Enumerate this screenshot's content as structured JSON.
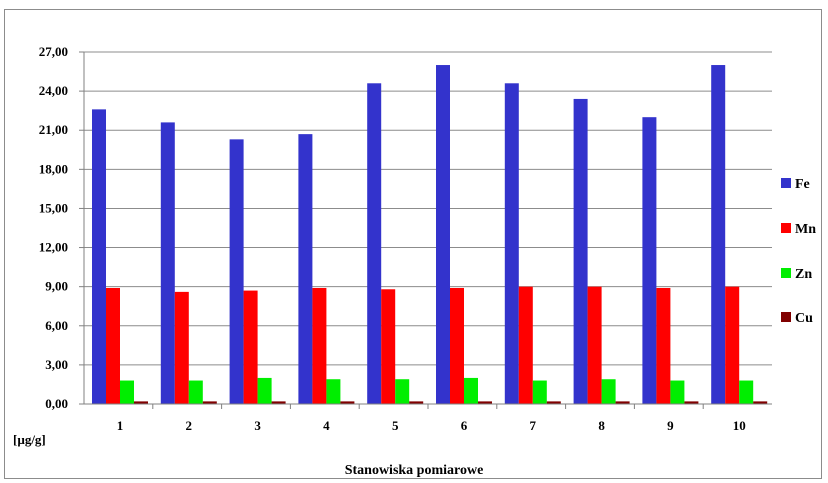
{
  "chart_data": {
    "type": "bar",
    "title": "",
    "xlabel": "Stanowiska pomiarowe",
    "ylabel": "[µg/g]",
    "ylim": [
      0,
      27
    ],
    "yticks": [
      "0,00",
      "3,00",
      "6,00",
      "9,00",
      "12,00",
      "15,00",
      "18,00",
      "21,00",
      "24,00",
      "27,00"
    ],
    "grid": true,
    "legend_position": "right",
    "categories": [
      "1",
      "2",
      "3",
      "4",
      "5",
      "6",
      "7",
      "8",
      "9",
      "10"
    ],
    "series": [
      {
        "name": "Fe",
        "color": "#3333cc",
        "values": [
          22.6,
          21.6,
          20.3,
          20.7,
          24.6,
          26.0,
          24.6,
          23.4,
          22.0,
          26.0
        ]
      },
      {
        "name": "Mn",
        "color": "#ff0000",
        "values": [
          8.9,
          8.6,
          8.7,
          8.9,
          8.8,
          8.9,
          9.0,
          9.0,
          8.9,
          9.0
        ]
      },
      {
        "name": "Zn",
        "color": "#00ee00",
        "values": [
          1.8,
          1.8,
          2.0,
          1.9,
          1.9,
          2.0,
          1.8,
          1.9,
          1.8,
          1.8
        ]
      },
      {
        "name": "Cu",
        "color": "#800000",
        "values": [
          0.2,
          0.2,
          0.2,
          0.2,
          0.2,
          0.2,
          0.2,
          0.2,
          0.2,
          0.2
        ]
      }
    ]
  }
}
